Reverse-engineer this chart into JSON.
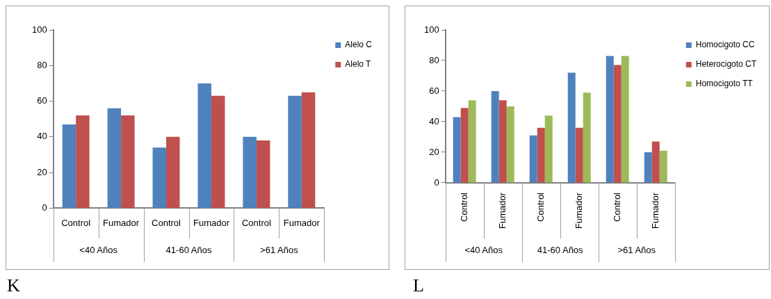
{
  "chart_data": [
    {
      "type": "bar",
      "title": "K",
      "categories": [
        "Control",
        "Fumador",
        "Control",
        "Fumador",
        "Control",
        "Fumador"
      ],
      "annotations": [
        "<40 Años",
        "41-60 Años",
        ">61 Años"
      ],
      "series": [
        {
          "name": "Alelo C",
          "color": "#4f81bd",
          "values": [
            47,
            56,
            34,
            70,
            40,
            63
          ]
        },
        {
          "name": "Alelo T",
          "color": "#c0504d",
          "values": [
            52,
            52,
            40,
            63,
            38,
            65
          ]
        }
      ],
      "ylim": [
        0,
        100
      ],
      "yticks": [
        0,
        20,
        40,
        60,
        80,
        100
      ],
      "grid": false,
      "legend": "right"
    },
    {
      "type": "bar",
      "title": "L",
      "categories": [
        "Control",
        "Fumador",
        "Control",
        "Fumador",
        "Control",
        "Fumador"
      ],
      "annotations": [
        "<40 Años",
        "41-60 Años",
        ">61 Años"
      ],
      "series": [
        {
          "name": "Homocigoto CC",
          "color": "#4f81bd",
          "values": [
            43,
            60,
            31,
            72,
            83,
            20
          ]
        },
        {
          "name": "Heterocigoto CT",
          "color": "#c0504d",
          "values": [
            49,
            54,
            36,
            36,
            77,
            27
          ]
        },
        {
          "name": "Homocigoto TT",
          "color": "#9bbb59",
          "values": [
            54,
            50,
            44,
            59,
            83,
            21
          ]
        }
      ],
      "ylim": [
        0,
        100
      ],
      "yticks": [
        0,
        20,
        40,
        60,
        80,
        100
      ],
      "grid": false,
      "legend": "right"
    }
  ]
}
